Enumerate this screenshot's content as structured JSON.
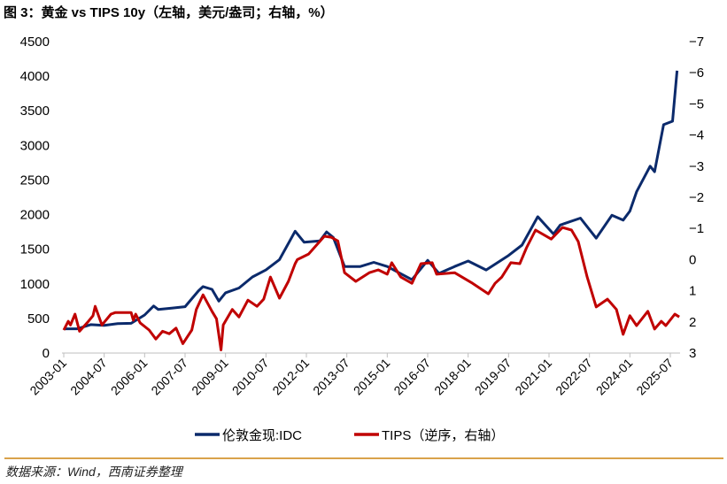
{
  "title": "图 3：黄金 vs TIPS 10y（左轴，美元/盎司；右轴，%）",
  "source": "数据来源：Wind，西南证券整理",
  "chart_data": {
    "type": "line",
    "title": "图 3：黄金 vs TIPS 10y（左轴，美元/盎司；右轴，%）",
    "xlabel": "",
    "ylabel": "",
    "x_ticks": [
      "2003-01",
      "2004-07",
      "2006-01",
      "2007-07",
      "2009-01",
      "2010-07",
      "2012-01",
      "2013-07",
      "2015-01",
      "2016-07",
      "2018-01",
      "2019-07",
      "2021-01",
      "2022-07",
      "2024-01",
      "2025-07"
    ],
    "ylim_left": [
      0,
      4500
    ],
    "yticks_left": [
      "0",
      "500",
      "1000",
      "1500",
      "2000",
      "2500",
      "3000",
      "3500",
      "4000",
      "4500"
    ],
    "ylim_right": [
      3,
      -7
    ],
    "right_axis_inverted": true,
    "yticks_right": [
      "3",
      "2",
      "1",
      "0",
      "-1",
      "-2",
      "-3",
      "-4",
      "-5",
      "-6",
      "-7"
    ],
    "grid": false,
    "legend_position": "bottom",
    "series": [
      {
        "name": "伦敦金现:IDC",
        "axis": "left",
        "color": "#0b2a6b",
        "points": [
          [
            "2003-01",
            350
          ],
          [
            "2003-07",
            350
          ],
          [
            "2004-01",
            410
          ],
          [
            "2004-07",
            400
          ],
          [
            "2005-01",
            425
          ],
          [
            "2005-07",
            430
          ],
          [
            "2006-01",
            550
          ],
          [
            "2006-05",
            680
          ],
          [
            "2006-07",
            630
          ],
          [
            "2007-01",
            650
          ],
          [
            "2007-07",
            670
          ],
          [
            "2008-01",
            900
          ],
          [
            "2008-03",
            960
          ],
          [
            "2008-07",
            920
          ],
          [
            "2008-10",
            750
          ],
          [
            "2009-01",
            870
          ],
          [
            "2009-07",
            940
          ],
          [
            "2010-01",
            1100
          ],
          [
            "2010-07",
            1200
          ],
          [
            "2011-01",
            1350
          ],
          [
            "2011-08",
            1760
          ],
          [
            "2011-12",
            1600
          ],
          [
            "2012-07",
            1620
          ],
          [
            "2012-10",
            1750
          ],
          [
            "2013-01",
            1670
          ],
          [
            "2013-06",
            1250
          ],
          [
            "2014-01",
            1250
          ],
          [
            "2014-07",
            1310
          ],
          [
            "2015-01",
            1250
          ],
          [
            "2015-12",
            1060
          ],
          [
            "2016-07",
            1340
          ],
          [
            "2016-12",
            1150
          ],
          [
            "2017-07",
            1250
          ],
          [
            "2018-01",
            1330
          ],
          [
            "2018-09",
            1200
          ],
          [
            "2019-07",
            1410
          ],
          [
            "2020-01",
            1560
          ],
          [
            "2020-08",
            1970
          ],
          [
            "2021-03",
            1720
          ],
          [
            "2021-06",
            1850
          ],
          [
            "2022-03",
            1950
          ],
          [
            "2022-10",
            1660
          ],
          [
            "2023-05",
            1990
          ],
          [
            "2023-10",
            1920
          ],
          [
            "2024-01",
            2050
          ],
          [
            "2024-04",
            2330
          ],
          [
            "2024-10",
            2700
          ],
          [
            "2024-12",
            2620
          ],
          [
            "2025-04",
            3300
          ],
          [
            "2025-08",
            3350
          ],
          [
            "2025-10",
            4080
          ]
        ]
      },
      {
        "name": "TIPS（逆序，右轴）",
        "axis": "right",
        "color": "#c00000",
        "points": [
          [
            "2003-01",
            2.26
          ],
          [
            "2003-03",
            1.98
          ],
          [
            "2003-04",
            2.1
          ],
          [
            "2003-06",
            1.75
          ],
          [
            "2003-08",
            2.3
          ],
          [
            "2003-12",
            1.98
          ],
          [
            "2004-02",
            1.8
          ],
          [
            "2004-03",
            1.5
          ],
          [
            "2004-06",
            2.1
          ],
          [
            "2004-10",
            1.75
          ],
          [
            "2004-12",
            1.7
          ],
          [
            "2005-07",
            1.7
          ],
          [
            "2005-08",
            1.95
          ],
          [
            "2005-09",
            1.75
          ],
          [
            "2005-11",
            2.03
          ],
          [
            "2006-03",
            2.26
          ],
          [
            "2006-06",
            2.55
          ],
          [
            "2006-09",
            2.3
          ],
          [
            "2006-12",
            2.38
          ],
          [
            "2007-03",
            2.2
          ],
          [
            "2007-06",
            2.7
          ],
          [
            "2007-10",
            2.26
          ],
          [
            "2007-12",
            1.6
          ],
          [
            "2008-03",
            1.13
          ],
          [
            "2008-07",
            1.66
          ],
          [
            "2008-09",
            1.9
          ],
          [
            "2008-11",
            2.9
          ],
          [
            "2008-12",
            2.1
          ],
          [
            "2009-04",
            1.6
          ],
          [
            "2009-07",
            1.84
          ],
          [
            "2009-11",
            1.3
          ],
          [
            "2010-03",
            1.5
          ],
          [
            "2010-06",
            1.27
          ],
          [
            "2010-09",
            0.56
          ],
          [
            "2011-01",
            1.24
          ],
          [
            "2011-05",
            0.7
          ],
          [
            "2011-08",
            0.13
          ],
          [
            "2011-09",
            0.0
          ],
          [
            "2012-02",
            -0.18
          ],
          [
            "2012-09",
            -0.75
          ],
          [
            "2012-12",
            -0.72
          ],
          [
            "2013-03",
            -0.6
          ],
          [
            "2013-06",
            0.42
          ],
          [
            "2013-11",
            0.7
          ],
          [
            "2014-05",
            0.42
          ],
          [
            "2014-09",
            0.33
          ],
          [
            "2015-01",
            0.47
          ],
          [
            "2015-03",
            0.1
          ],
          [
            "2015-07",
            0.56
          ],
          [
            "2015-12",
            0.76
          ],
          [
            "2016-04",
            0.13
          ],
          [
            "2016-09",
            0.1
          ],
          [
            "2016-11",
            0.47
          ],
          [
            "2017-07",
            0.42
          ],
          [
            "2018-03",
            0.76
          ],
          [
            "2018-10",
            1.1
          ],
          [
            "2019-01",
            0.76
          ],
          [
            "2019-04",
            0.56
          ],
          [
            "2019-08",
            0.1
          ],
          [
            "2019-12",
            0.13
          ],
          [
            "2020-03",
            -0.38
          ],
          [
            "2020-07",
            -0.95
          ],
          [
            "2021-02",
            -0.66
          ],
          [
            "2021-07",
            -1.03
          ],
          [
            "2021-11",
            -0.95
          ],
          [
            "2022-02",
            -0.58
          ],
          [
            "2022-06",
            0.56
          ],
          [
            "2022-10",
            1.52
          ],
          [
            "2023-03",
            1.27
          ],
          [
            "2023-07",
            1.6
          ],
          [
            "2023-10",
            2.4
          ],
          [
            "2024-01",
            1.8
          ],
          [
            "2024-04",
            2.12
          ],
          [
            "2024-09",
            1.66
          ],
          [
            "2024-12",
            2.23
          ],
          [
            "2025-03",
            1.98
          ],
          [
            "2025-05",
            2.12
          ],
          [
            "2025-09",
            1.75
          ],
          [
            "2025-11",
            1.84
          ]
        ]
      }
    ]
  }
}
